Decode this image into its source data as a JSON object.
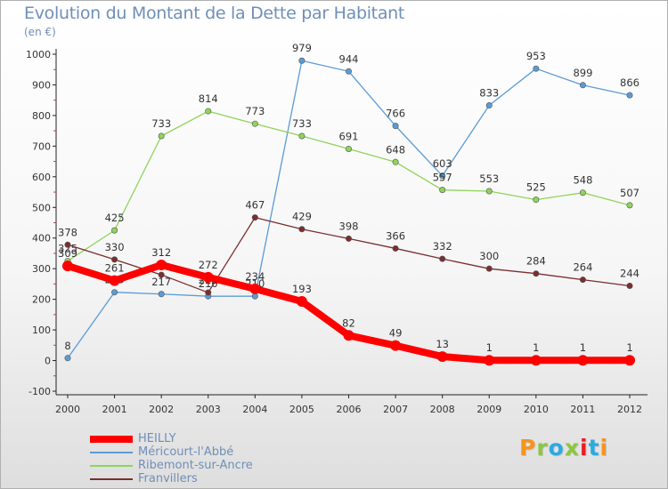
{
  "title": "Evolution du Montant de la Dette par Habitant",
  "unit": "(en €)",
  "brand": {
    "text": "Proxiti",
    "colors": [
      "#f7941d",
      "#8dc63f",
      "#29abe2",
      "#8dc63f",
      "#ed1c24",
      "#29abe2",
      "#f7941d"
    ]
  },
  "chart_data": {
    "type": "line",
    "x": [
      "2000",
      "2001",
      "2002",
      "2003",
      "2004",
      "2005",
      "2006",
      "2007",
      "2008",
      "2009",
      "2010",
      "2011",
      "2012"
    ],
    "ylim": [
      -100,
      1000
    ],
    "yticks": [
      "-100",
      "0",
      "100",
      "200",
      "300",
      "400",
      "500",
      "600",
      "700",
      "800",
      "900",
      "1000"
    ],
    "grid": false,
    "legend_position": "bottom-left",
    "series": [
      {
        "name": "Méricourt-l'Abbé",
        "color": "#5b9bd5",
        "width": 1.3,
        "values": [
          8,
          223,
          217,
          210,
          210,
          979,
          944,
          766,
          603,
          833,
          953,
          899,
          866
        ],
        "labels": [
          "8",
          "223",
          "217",
          "210",
          "210",
          "979",
          "944",
          "766",
          "603",
          "833",
          "953",
          "899",
          "866"
        ]
      },
      {
        "name": "Ribemont-sur-Ancre",
        "color": "#8fd45a",
        "width": 1.3,
        "values": [
          325,
          425,
          733,
          814,
          773,
          733,
          691,
          648,
          557,
          553,
          525,
          548,
          507
        ],
        "labels": [
          "325",
          "425",
          "733",
          "814",
          "773",
          "733",
          "691",
          "648",
          "557",
          "553",
          "525",
          "548",
          "507"
        ]
      },
      {
        "name": "Franvillers",
        "color": "#7a2e2e",
        "width": 1.3,
        "values": [
          378,
          330,
          280,
          222,
          467,
          429,
          398,
          366,
          332,
          300,
          284,
          264,
          244
        ],
        "labels": [
          "378",
          "330",
          "",
          "222",
          "467",
          "429",
          "398",
          "366",
          "332",
          "300",
          "284",
          "264",
          "244"
        ]
      },
      {
        "name": "HEILLY",
        "color": "#ff0000",
        "width": 8,
        "values": [
          309,
          261,
          312,
          272,
          234,
          193,
          82,
          49,
          13,
          1,
          1,
          1,
          1
        ],
        "labels": [
          "309",
          "261",
          "312",
          "272",
          "234",
          "193",
          "82",
          "49",
          "13",
          "1",
          "1",
          "1",
          "1"
        ]
      }
    ],
    "legend": [
      "HEILLY",
      "Méricourt-l'Abbé",
      "Ribemont-sur-Ancre",
      "Franvillers"
    ]
  }
}
